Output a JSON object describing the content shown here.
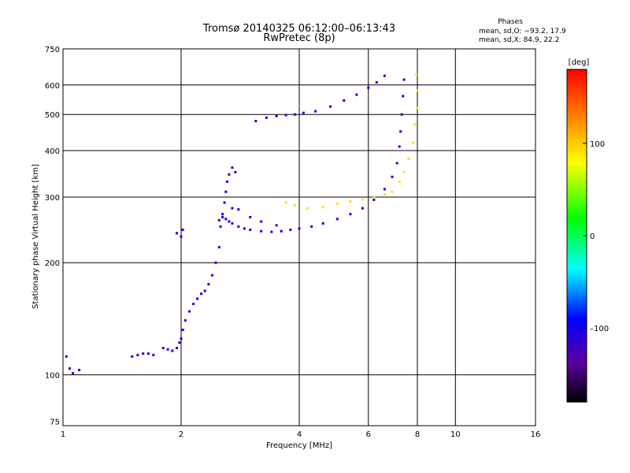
{
  "chart_data": {
    "type": "scatter",
    "title": "Tromsø 20140325 06:12:00–06:13:43",
    "subtitle": "RwPretec (8p)",
    "xlabel": "Frequency [MHz]",
    "ylabel": "Stationary phase Virtual Height [km]",
    "x_scale": "log",
    "y_scale": "log",
    "xlim": [
      1,
      16
    ],
    "ylim": [
      73,
      750
    ],
    "x_ticks": [
      1,
      2,
      4,
      6,
      8,
      10,
      16
    ],
    "x_tick_labels": [
      "1",
      "2",
      "4",
      "6",
      "8",
      "10",
      "16"
    ],
    "y_ticks": [
      75,
      100,
      200,
      300,
      400,
      500,
      600,
      750
    ],
    "y_tick_labels": [
      "75",
      "100",
      "200",
      "300",
      "400",
      "500",
      "600",
      "750"
    ],
    "grid": true,
    "stats": {
      "header": "Phases",
      "line_o": "mean, sd,O: −93.2, 17.9",
      "line_x": "mean, sd,X:  84.9, 22.2"
    },
    "colorbar": {
      "label": "[deg]",
      "ticks": [
        100,
        0,
        -100
      ],
      "tick_labels": [
        "100",
        "0",
        "–100"
      ],
      "range": [
        -180,
        180
      ],
      "colormap": "rainbow: black-purple-blue-cyan-green-yellow-red"
    },
    "series": [
      {
        "mode": "O",
        "color_phase": -100,
        "points": [
          [
            1.02,
            112
          ],
          [
            1.04,
            104
          ],
          [
            1.06,
            101
          ],
          [
            1.1,
            103
          ],
          [
            1.5,
            112
          ],
          [
            1.55,
            113
          ],
          [
            1.6,
            114
          ],
          [
            1.65,
            114
          ],
          [
            1.7,
            113
          ],
          [
            1.8,
            118
          ],
          [
            1.85,
            117
          ],
          [
            1.9,
            116
          ],
          [
            1.95,
            118
          ],
          [
            1.98,
            122
          ],
          [
            2.0,
            125
          ],
          [
            2.02,
            132
          ],
          [
            2.05,
            140
          ],
          [
            2.1,
            148
          ],
          [
            2.15,
            155
          ],
          [
            2.2,
            160
          ],
          [
            2.25,
            165
          ],
          [
            2.3,
            168
          ],
          [
            2.35,
            175
          ],
          [
            2.4,
            185
          ],
          [
            2.45,
            200
          ],
          [
            2.5,
            220
          ],
          [
            2.52,
            250
          ],
          [
            2.55,
            270
          ],
          [
            2.58,
            290
          ],
          [
            2.6,
            310
          ],
          [
            2.62,
            330
          ],
          [
            2.65,
            345
          ],
          [
            2.7,
            360
          ],
          [
            2.75,
            350
          ],
          [
            2.5,
            260
          ],
          [
            2.55,
            265
          ],
          [
            2.6,
            262
          ],
          [
            2.65,
            258
          ],
          [
            2.7,
            255
          ],
          [
            2.8,
            250
          ],
          [
            2.9,
            247
          ],
          [
            3.0,
            245
          ],
          [
            3.2,
            243
          ],
          [
            3.4,
            242
          ],
          [
            3.6,
            243
          ],
          [
            3.8,
            245
          ],
          [
            4.0,
            247
          ],
          [
            4.3,
            250
          ],
          [
            4.6,
            255
          ],
          [
            5.0,
            262
          ],
          [
            5.4,
            270
          ],
          [
            5.8,
            280
          ],
          [
            6.2,
            295
          ],
          [
            6.6,
            315
          ],
          [
            6.9,
            340
          ],
          [
            7.1,
            370
          ],
          [
            7.2,
            410
          ],
          [
            7.25,
            450
          ],
          [
            7.3,
            500
          ],
          [
            7.35,
            560
          ],
          [
            7.4,
            620
          ],
          [
            2.7,
            280
          ],
          [
            2.8,
            278
          ],
          [
            3.0,
            265
          ],
          [
            3.2,
            258
          ],
          [
            3.5,
            252
          ],
          [
            3.1,
            480
          ],
          [
            3.3,
            490
          ],
          [
            3.5,
            495
          ],
          [
            3.7,
            498
          ],
          [
            3.9,
            500
          ],
          [
            4.1,
            505
          ],
          [
            4.4,
            510
          ],
          [
            4.8,
            525
          ],
          [
            5.2,
            545
          ],
          [
            5.6,
            565
          ],
          [
            6.0,
            590
          ],
          [
            6.3,
            610
          ],
          [
            6.6,
            635
          ],
          [
            1.95,
            240
          ],
          [
            2.0,
            235
          ],
          [
            2.02,
            245
          ]
        ]
      },
      {
        "mode": "X",
        "color_phase": 90,
        "points": [
          [
            3.7,
            290
          ],
          [
            3.9,
            285
          ],
          [
            4.2,
            280
          ],
          [
            4.6,
            282
          ],
          [
            5.0,
            288
          ],
          [
            5.4,
            292
          ],
          [
            5.8,
            296
          ],
          [
            6.2,
            300
          ],
          [
            6.6,
            305
          ],
          [
            6.9,
            310
          ],
          [
            7.2,
            330
          ],
          [
            7.4,
            350
          ],
          [
            7.6,
            380
          ],
          [
            7.8,
            420
          ],
          [
            7.9,
            470
          ],
          [
            8.0,
            520
          ],
          [
            8.0,
            580
          ],
          [
            7.95,
            640
          ]
        ]
      }
    ]
  }
}
